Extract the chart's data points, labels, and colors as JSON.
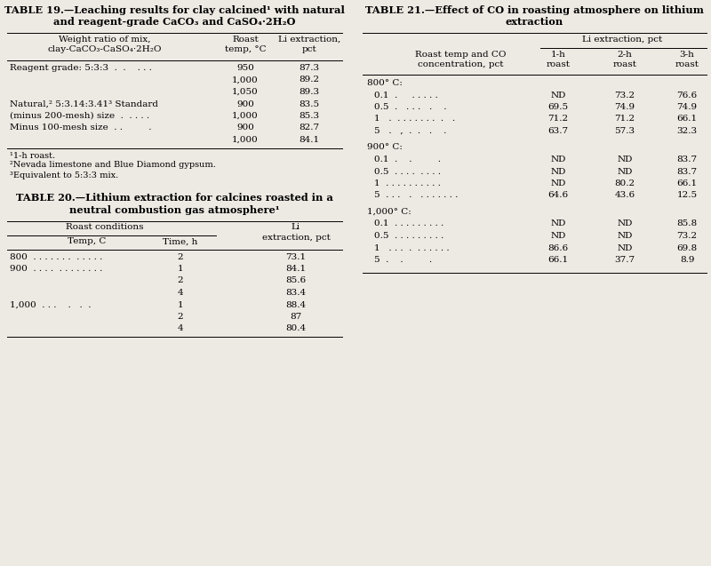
{
  "bg_color": "#ede9e3",
  "title19_line1": "TABLE 19.—Leaching results for clay calcined¹ with natural",
  "title19_line2": "and reagent-grade CaCO₃ and CaSO₄·2H₂O",
  "title20_line1": "TABLE 20.—Lithium extraction for calcines roasted in a",
  "title20_line2": "neutral combustion gas atmosphere¹",
  "title21_line1": "TABLE 21.—Effect of CO in roasting atmosphere on lithium",
  "title21_line2": "extraction",
  "footnotes19": [
    "¹1-h roast.",
    "²Nevada limestone and Blue Diamond gypsum.",
    "³Equivalent to 5:3:3 mix."
  ],
  "table19_rows": [
    [
      "Reagent grade: 5:3:3  .  .    . . .",
      "950",
      "87.3"
    ],
    [
      "",
      "1,000",
      "89.2"
    ],
    [
      "",
      "1,050",
      "89.3"
    ],
    [
      "Natural,² 5:3.14:3.41³ Standard",
      "900",
      "83.5"
    ],
    [
      "(minus 200-mesh) size  .  . . . .",
      "1,000",
      "85.3"
    ],
    [
      "Minus 100-mesh size  . .         .",
      "900",
      "82.7"
    ],
    [
      "",
      "1,000",
      "84.1"
    ]
  ],
  "table20_rows": [
    [
      "800  . . . . . . .  . . . . .",
      "2",
      "73.1"
    ],
    [
      "900  . . . .  . . . . . . . .",
      "1",
      "84.1"
    ],
    [
      "",
      "2",
      "85.6"
    ],
    [
      "",
      "4",
      "83.4"
    ],
    [
      "1,000  . . .    .   .  .",
      "1",
      "88.4"
    ],
    [
      "",
      "2",
      "87"
    ],
    [
      "",
      "4",
      "80.4"
    ]
  ],
  "table21_sections": [
    {
      "label": "800° C:",
      "rows": [
        [
          "0.1  .     . . . . .",
          "ND",
          "73.2",
          "76.6"
        ],
        [
          "0.5  .   . . .   .    .",
          "69.5",
          "74.9",
          "74.9"
        ],
        [
          "1   .  . . . . . . .  .   .",
          "71.2",
          "71.2",
          "66.1"
        ],
        [
          "5   .   ,  .  .   .    .",
          "63.7",
          "57.3",
          "32.3"
        ]
      ]
    },
    {
      "label": "900° C:",
      "rows": [
        [
          "0.1  .    .         .",
          "ND",
          "ND",
          "83.7"
        ],
        [
          "0.5  . . . .  . . . .",
          "ND",
          "ND",
          "83.7"
        ],
        [
          "1  . . . . . . . . . .",
          "ND",
          "80.2",
          "66.1"
        ],
        [
          "5  . . .   .   . . . . . . .",
          "64.6",
          "43.6",
          "12.5"
        ]
      ]
    },
    {
      "label": "1,000° C:",
      "rows": [
        [
          "0.1  . . . . . . . . .",
          "ND",
          "ND",
          "85.8"
        ],
        [
          "0.5  . . . . . . . . .",
          "ND",
          "ND",
          "73.2"
        ],
        [
          "1   . . .  .  . . . . . .",
          "86.6",
          "ND",
          "69.8"
        ],
        [
          "5  .    .         .",
          "66.1",
          "37.7",
          "8.9"
        ]
      ]
    }
  ]
}
